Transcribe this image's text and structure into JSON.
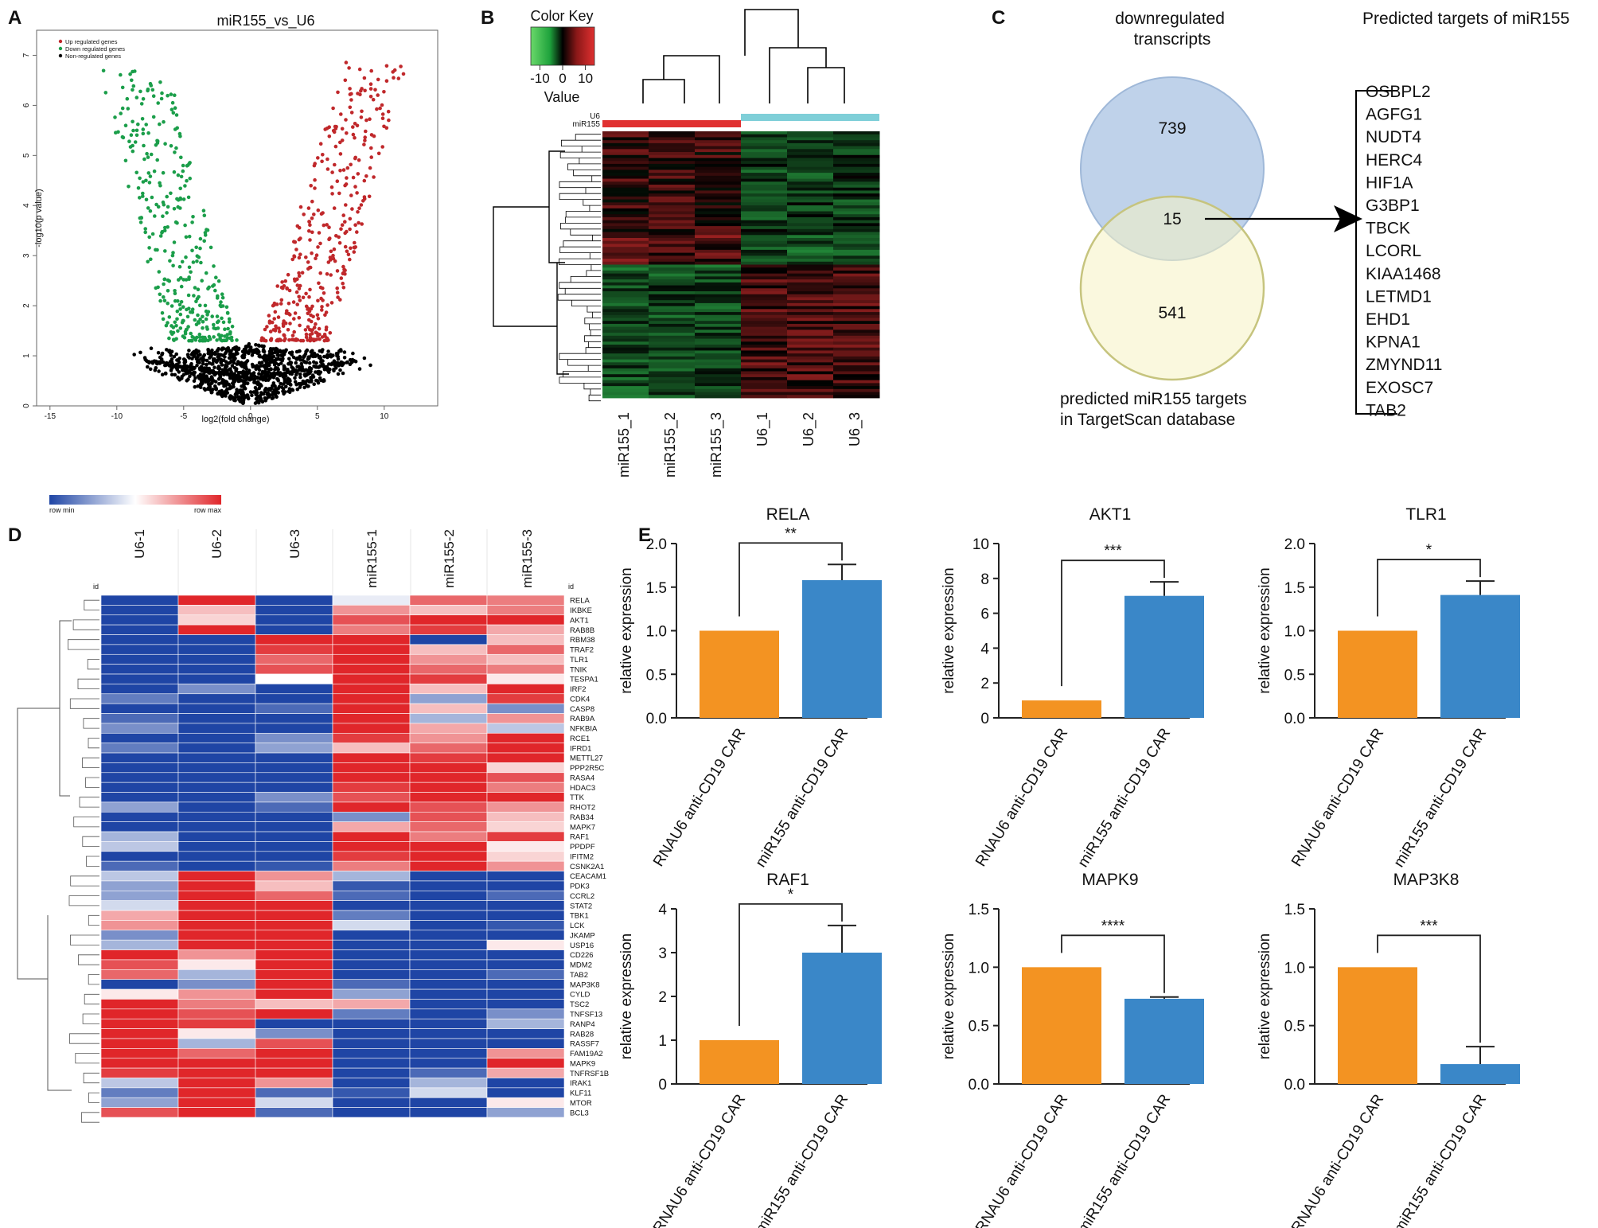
{
  "panel_labels": [
    "A",
    "B",
    "C",
    "D",
    "E"
  ],
  "colors": {
    "up": "#c0282b",
    "down": "#1b9e4a",
    "non": "#000000",
    "rnau6": "#f39322",
    "mir155": "#3a87c8",
    "venn_top": "#b8cde8",
    "venn_bottom": "#f5f3c2",
    "heat_low": "#1f45a5",
    "heat_mid": "#ffffff",
    "heat_high": "#e0262a",
    "green_key": "#20b040",
    "red_key": "#cc2020",
    "bar_u6": "#7fcfd8",
    "bar_mir": "#e03030"
  },
  "chart_data": [
    {
      "panel": "A",
      "type": "scatter",
      "title": "miR155_vs_U6",
      "xlabel": "log2(fold change)",
      "ylabel": "-log10(p value)",
      "xlim": [
        -16,
        14
      ],
      "ylim": [
        0,
        7.5
      ],
      "x_ticks": [
        -15,
        -10,
        -5,
        0,
        5,
        10
      ],
      "y_ticks": [
        0,
        1,
        2,
        3,
        4,
        5,
        6,
        7
      ],
      "legend": [
        "Up regulated genes",
        "Down regulated genes",
        "Non-regulated genes"
      ],
      "legend_position": "top-left"
    },
    {
      "panel": "B",
      "type": "heatmap",
      "color_key_title": "Color Key",
      "color_key_label": "Value",
      "color_key_ticks": [
        "-10",
        "0",
        "10"
      ],
      "color_key_range": [
        -14,
        14
      ],
      "group_labels": [
        "U6",
        "miR155"
      ],
      "columns": [
        "miR155_1",
        "miR155_2",
        "miR155_3",
        "U6_1",
        "U6_2",
        "U6_3"
      ]
    },
    {
      "panel": "C",
      "type": "venn",
      "set_top_label": "downregulated transcripts",
      "set_bottom_label": "predicted miR155  targets in TargetScan database",
      "top_only": "739",
      "overlap": "15",
      "bottom_only": "541",
      "targets_title": "Predicted targets of  miR155",
      "targets": [
        "OSBPL2",
        "AGFG1",
        "NUDT4",
        "HERC4",
        "HIF1A",
        "G3BP1",
        "TBCK",
        "LCORL",
        "KIAA1468",
        "LETMD1",
        "EHD1",
        "KPNA1",
        "ZMYND11",
        "EXOSC7",
        "TAB2"
      ]
    },
    {
      "panel": "D",
      "type": "heatmap",
      "scale_min_label": "row min",
      "scale_max_label": "row max",
      "id_label": "id",
      "columns": [
        "U6-1",
        "U6-2",
        "U6-3",
        "miR155-1",
        "miR155-2",
        "miR155-3"
      ],
      "rows": [
        "RELA",
        "IKBKE",
        "AKT1",
        "RAB8B",
        "RBM38",
        "TRAF2",
        "TLR1",
        "TNIK",
        "TESPA1",
        "IRF2",
        "CDK4",
        "CASP8",
        "RAB9A",
        "NFKBIA",
        "RCE1",
        "IFRD1",
        "METTL27",
        "PPP2R5C",
        "RASA4",
        "HDAC3",
        "TTK",
        "RHOT2",
        "RAB34",
        "MAPK7",
        "RAF1",
        "PPDPF",
        "IFITM2",
        "CSNK2A1",
        "CEACAM1",
        "PDK3",
        "CCRL2",
        "STAT2",
        "TBK1",
        "LCK",
        "JKAMP",
        "USP16",
        "CD226",
        "MDM2",
        "TAB2",
        "MAP3K8",
        "CYLD",
        "TSC2",
        "TNFSF13",
        "RANP4",
        "RAB28",
        "RASSF7",
        "FAM19A2",
        "MAPK9",
        "TNFRSF1B",
        "IRAK1",
        "KLF11",
        "MTOR",
        "BCL3"
      ],
      "values": [
        [
          -1,
          1,
          -1,
          -0.1,
          0.7,
          0.6
        ],
        [
          -1,
          0.3,
          -1,
          0.5,
          0.3,
          0.6
        ],
        [
          -1,
          0.2,
          -1,
          0.8,
          1,
          1
        ],
        [
          -1,
          1,
          -1,
          0.6,
          0.9,
          0.4
        ],
        [
          -1,
          -1,
          1,
          1,
          -1,
          0.3
        ],
        [
          -1,
          -1,
          0.9,
          1,
          0.3,
          0.7
        ],
        [
          -1,
          -1,
          0.7,
          1,
          0.5,
          0.3
        ],
        [
          -1,
          -1,
          0.8,
          1,
          0.7,
          0.6
        ],
        [
          -1,
          -1,
          0,
          1,
          0.9,
          0.1
        ],
        [
          -1,
          -0.6,
          -1,
          1,
          0.3,
          1
        ],
        [
          -0.7,
          -1,
          -1,
          1,
          -0.5,
          0.9
        ],
        [
          -1,
          -1,
          -0.8,
          1,
          0.3,
          -0.6
        ],
        [
          -0.8,
          -1,
          -1,
          1,
          -0.4,
          0.5
        ],
        [
          -0.6,
          -1,
          -1,
          1,
          0.4,
          -0.3
        ],
        [
          -1,
          -1,
          -0.6,
          0.9,
          0.5,
          1
        ],
        [
          -0.7,
          -1,
          -0.5,
          0.3,
          0.7,
          1
        ],
        [
          -1,
          -1,
          -1,
          1,
          0.9,
          1
        ],
        [
          -1,
          -1,
          -1,
          1,
          1,
          0.2
        ],
        [
          -1,
          -1,
          -1,
          1,
          1,
          0.8
        ],
        [
          -1,
          -1,
          -1,
          0.9,
          1,
          0.6
        ],
        [
          -1,
          -1,
          -0.6,
          0.8,
          1,
          1
        ],
        [
          -0.5,
          -1,
          -0.8,
          1,
          0.8,
          0.5
        ],
        [
          -1,
          -1,
          -1,
          -0.6,
          0.8,
          0.3
        ],
        [
          -1,
          -1,
          -1,
          0.4,
          0.7,
          0.2
        ],
        [
          -0.4,
          -1,
          -1,
          1,
          0.6,
          0.9
        ],
        [
          -0.3,
          -1,
          -1,
          1,
          1,
          0.1
        ],
        [
          -1,
          -1,
          -1,
          0.9,
          1,
          0.2
        ],
        [
          -0.8,
          -1,
          -0.9,
          0.6,
          1,
          0.5
        ],
        [
          -0.3,
          1,
          0.5,
          -0.4,
          -1,
          -1
        ],
        [
          -0.5,
          1,
          0.3,
          -0.9,
          -1,
          -1
        ],
        [
          -0.5,
          1,
          0.7,
          -0.8,
          -1,
          -0.8
        ],
        [
          -0.2,
          1,
          1,
          -1,
          -1,
          -1
        ],
        [
          0.4,
          1,
          1,
          -0.7,
          -1,
          -1
        ],
        [
          0.5,
          1,
          1,
          -0.2,
          -1,
          -0.9
        ],
        [
          -0.6,
          1,
          1,
          -1,
          -1,
          -1
        ],
        [
          -0.4,
          1,
          1,
          -1,
          -1,
          0.1
        ],
        [
          1,
          0.5,
          1,
          -1,
          -1,
          -1
        ],
        [
          0.8,
          0.1,
          1,
          -1,
          -1,
          -1
        ],
        [
          0.7,
          -0.4,
          1,
          -1,
          -1,
          -0.8
        ],
        [
          -1,
          -0.6,
          1,
          -0.8,
          -1,
          -1
        ],
        [
          0.1,
          0.5,
          1,
          -0.5,
          -1,
          -1
        ],
        [
          1,
          0.6,
          0.3,
          0.4,
          -1,
          -1
        ],
        [
          1,
          0.8,
          1,
          -0.7,
          -1,
          -0.6
        ],
        [
          1,
          0.9,
          -1,
          -1,
          -1,
          -0.4
        ],
        [
          1,
          0.1,
          -0.6,
          -1,
          -1,
          -1
        ],
        [
          1,
          -0.4,
          0.8,
          -1,
          -1,
          -1
        ],
        [
          1,
          0.7,
          1,
          -1,
          -1,
          0.5
        ],
        [
          1,
          1,
          1,
          -1,
          -1,
          1
        ],
        [
          0.9,
          1,
          1,
          -1,
          -0.8,
          0.4
        ],
        [
          -0.3,
          1,
          0.5,
          -1,
          -0.4,
          -1
        ],
        [
          -0.7,
          1,
          -0.8,
          -0.9,
          -0.2,
          -1
        ],
        [
          -0.5,
          1,
          -0.2,
          -1,
          -1,
          0.1
        ],
        [
          0.8,
          1,
          -0.8,
          -1,
          -1,
          -0.5
        ]
      ]
    },
    {
      "panel": "E",
      "type": "bar",
      "ylabel": "relative expression",
      "categories": [
        "RNAU6 anti-CD19 CAR",
        "miR155 anti-CD19 CAR"
      ],
      "plots": [
        {
          "title": "RELA",
          "values": [
            1.0,
            1.58
          ],
          "errors": [
            0,
            0.18
          ],
          "ylim": [
            0,
            2.0
          ],
          "ticks": [
            "0.0",
            "0.5",
            "1.0",
            "1.5",
            "2.0"
          ],
          "sig": "**"
        },
        {
          "title": "AKT1",
          "values": [
            1.0,
            7.0
          ],
          "errors": [
            0,
            0.8
          ],
          "ylim": [
            0,
            10
          ],
          "ticks": [
            "0",
            "2",
            "4",
            "6",
            "8",
            "10"
          ],
          "sig": "***"
        },
        {
          "title": "TLR1",
          "values": [
            1.0,
            1.41
          ],
          "errors": [
            0,
            0.16
          ],
          "ylim": [
            0,
            2.0
          ],
          "ticks": [
            "0.0",
            "0.5",
            "1.0",
            "1.5",
            "2.0"
          ],
          "sig": "*"
        },
        {
          "title": "RAF1",
          "values": [
            1.0,
            3.0
          ],
          "errors": [
            0,
            0.62
          ],
          "ylim": [
            0,
            4
          ],
          "ticks": [
            "0",
            "1",
            "2",
            "3",
            "4"
          ],
          "sig": "*"
        },
        {
          "title": "MAPK9",
          "values": [
            1.0,
            0.73
          ],
          "errors": [
            0,
            0.015
          ],
          "ylim": [
            0,
            1.5
          ],
          "ticks": [
            "0.0",
            "0.5",
            "1.0",
            "1.5"
          ],
          "sig": "****"
        },
        {
          "title": "MAP3K8",
          "values": [
            1.0,
            0.17
          ],
          "errors": [
            0,
            0.15
          ],
          "ylim": [
            0,
            1.5
          ],
          "ticks": [
            "0.0",
            "0.5",
            "1.0",
            "1.5"
          ],
          "sig": "***"
        }
      ]
    }
  ]
}
